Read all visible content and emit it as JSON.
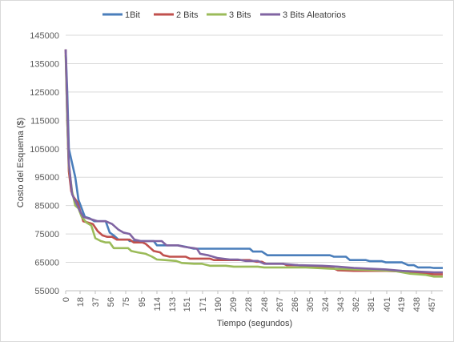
{
  "chart_data": {
    "type": "line",
    "xlabel": "Tiempo (segundos)",
    "ylabel": "Costo del Esquema ($)",
    "ylim": [
      55000,
      145000
    ],
    "yticks": [
      55000,
      65000,
      75000,
      85000,
      95000,
      105000,
      115000,
      125000,
      135000,
      145000
    ],
    "xlim": [
      0,
      471
    ],
    "xticks": [
      0,
      18,
      37,
      56,
      75,
      95,
      114,
      133,
      151,
      171,
      190,
      209,
      228,
      248,
      267,
      286,
      305,
      324,
      343,
      362,
      381,
      401,
      419,
      438,
      457
    ],
    "grid": "horizontal",
    "legend": "top",
    "series": [
      {
        "name": "1Bit",
        "color": "#4a7ebb",
        "points": [
          [
            0,
            140000
          ],
          [
            2,
            125000
          ],
          [
            4,
            105000
          ],
          [
            8,
            100000
          ],
          [
            12,
            95000
          ],
          [
            16,
            87000
          ],
          [
            20,
            84000
          ],
          [
            24,
            81000
          ],
          [
            30,
            80500
          ],
          [
            36,
            79500
          ],
          [
            50,
            79500
          ],
          [
            55,
            75500
          ],
          [
            60,
            74500
          ],
          [
            66,
            73000
          ],
          [
            78,
            73000
          ],
          [
            80,
            72500
          ],
          [
            110,
            72500
          ],
          [
            114,
            71000
          ],
          [
            140,
            71000
          ],
          [
            150,
            70500
          ],
          [
            160,
            69800
          ],
          [
            230,
            69800
          ],
          [
            234,
            68800
          ],
          [
            245,
            68800
          ],
          [
            252,
            67500
          ],
          [
            330,
            67500
          ],
          [
            335,
            67000
          ],
          [
            350,
            67000
          ],
          [
            355,
            65800
          ],
          [
            375,
            65800
          ],
          [
            380,
            65400
          ],
          [
            395,
            65400
          ],
          [
            400,
            65000
          ],
          [
            420,
            65000
          ],
          [
            428,
            64000
          ],
          [
            435,
            64000
          ],
          [
            440,
            63200
          ],
          [
            455,
            63200
          ],
          [
            460,
            63000
          ],
          [
            471,
            63000
          ]
        ]
      },
      {
        "name": "2 Bits",
        "color": "#c0504d",
        "points": [
          [
            0,
            140000
          ],
          [
            2,
            115000
          ],
          [
            4,
            97000
          ],
          [
            7,
            90000
          ],
          [
            10,
            88000
          ],
          [
            15,
            86000
          ],
          [
            22,
            79500
          ],
          [
            28,
            79000
          ],
          [
            34,
            78500
          ],
          [
            40,
            76000
          ],
          [
            46,
            74500
          ],
          [
            52,
            74000
          ],
          [
            58,
            74000
          ],
          [
            64,
            73000
          ],
          [
            80,
            73000
          ],
          [
            85,
            72000
          ],
          [
            96,
            72000
          ],
          [
            100,
            71500
          ],
          [
            106,
            70000
          ],
          [
            110,
            69000
          ],
          [
            118,
            68500
          ],
          [
            122,
            67500
          ],
          [
            130,
            67000
          ],
          [
            150,
            67000
          ],
          [
            155,
            66300
          ],
          [
            180,
            66300
          ],
          [
            185,
            65800
          ],
          [
            230,
            65800
          ],
          [
            238,
            65200
          ],
          [
            245,
            65200
          ],
          [
            250,
            64500
          ],
          [
            272,
            64500
          ],
          [
            276,
            64000
          ],
          [
            290,
            64000
          ],
          [
            300,
            63500
          ],
          [
            330,
            63500
          ],
          [
            340,
            62200
          ],
          [
            360,
            62000
          ],
          [
            400,
            62000
          ],
          [
            420,
            61800
          ],
          [
            440,
            61200
          ],
          [
            460,
            60800
          ],
          [
            471,
            60800
          ]
        ]
      },
      {
        "name": "3 Bits",
        "color": "#9bbb59",
        "points": [
          [
            0,
            138000
          ],
          [
            2,
            115000
          ],
          [
            4,
            99000
          ],
          [
            8,
            90000
          ],
          [
            12,
            85000
          ],
          [
            16,
            84000
          ],
          [
            20,
            81000
          ],
          [
            26,
            79000
          ],
          [
            32,
            78000
          ],
          [
            37,
            73500
          ],
          [
            44,
            72500
          ],
          [
            50,
            72000
          ],
          [
            55,
            72000
          ],
          [
            60,
            70000
          ],
          [
            78,
            70000
          ],
          [
            82,
            69000
          ],
          [
            90,
            68500
          ],
          [
            100,
            68000
          ],
          [
            108,
            67000
          ],
          [
            114,
            66000
          ],
          [
            124,
            65800
          ],
          [
            138,
            65500
          ],
          [
            145,
            64800
          ],
          [
            160,
            64500
          ],
          [
            170,
            64500
          ],
          [
            180,
            63800
          ],
          [
            200,
            63800
          ],
          [
            210,
            63500
          ],
          [
            240,
            63500
          ],
          [
            248,
            63200
          ],
          [
            300,
            63200
          ],
          [
            330,
            62800
          ],
          [
            380,
            62300
          ],
          [
            410,
            62000
          ],
          [
            430,
            61000
          ],
          [
            450,
            60600
          ],
          [
            460,
            60000
          ],
          [
            471,
            60000
          ]
        ]
      },
      {
        "name": "3 Bits Aleatorios",
        "color": "#8064a2",
        "points": [
          [
            0,
            140000
          ],
          [
            2,
            120000
          ],
          [
            4,
            100000
          ],
          [
            8,
            89000
          ],
          [
            13,
            86000
          ],
          [
            18,
            83000
          ],
          [
            22,
            81000
          ],
          [
            28,
            80500
          ],
          [
            34,
            80000
          ],
          [
            40,
            79500
          ],
          [
            50,
            79500
          ],
          [
            58,
            78500
          ],
          [
            66,
            76500
          ],
          [
            72,
            75500
          ],
          [
            80,
            75000
          ],
          [
            86,
            73000
          ],
          [
            94,
            72500
          ],
          [
            120,
            72500
          ],
          [
            126,
            71000
          ],
          [
            140,
            71000
          ],
          [
            148,
            70500
          ],
          [
            160,
            70000
          ],
          [
            164,
            69800
          ],
          [
            168,
            68000
          ],
          [
            178,
            67500
          ],
          [
            190,
            66500
          ],
          [
            205,
            66000
          ],
          [
            215,
            66000
          ],
          [
            225,
            65500
          ],
          [
            240,
            65500
          ],
          [
            248,
            64500
          ],
          [
            270,
            64500
          ],
          [
            290,
            64000
          ],
          [
            320,
            63800
          ],
          [
            340,
            63500
          ],
          [
            360,
            63000
          ],
          [
            400,
            62500
          ],
          [
            420,
            62000
          ],
          [
            460,
            61500
          ],
          [
            471,
            61500
          ]
        ]
      }
    ]
  }
}
